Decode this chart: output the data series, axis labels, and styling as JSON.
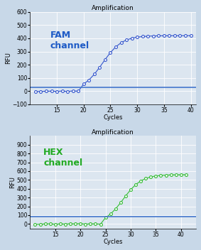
{
  "fam": {
    "title": "Amplification",
    "label": "FAM\nchannel",
    "label_color": "#1e5bc6",
    "line_color": "#3355cc",
    "marker_color": "#3355cc",
    "threshold": 30,
    "threshold_color": "#4477cc",
    "ylim": [
      -100,
      600
    ],
    "yticks": [
      -100,
      0,
      100,
      200,
      300,
      400,
      500,
      600
    ],
    "xlim": [
      10,
      41
    ],
    "xticks": [
      15,
      20,
      25,
      30,
      35,
      40
    ],
    "xlabel": "Cycles",
    "ylabel": "RFU",
    "sigmoid_L": 420,
    "sigmoid_k": 0.55,
    "sigmoid_x0": 23.5,
    "x_start": 11,
    "x_end": 41,
    "baseline_end": 19,
    "baseline_vals": [
      -3,
      -2,
      -1,
      0,
      -2,
      1,
      -3,
      2,
      -1
    ]
  },
  "hex": {
    "title": "Amplification",
    "label": "HEX\nchannel",
    "label_color": "#22aa22",
    "line_color": "#33bb33",
    "marker_color": "#33bb33",
    "threshold": 80,
    "threshold_color": "#4477cc",
    "ylim": [
      -50,
      1000
    ],
    "yticks": [
      0,
      100,
      200,
      300,
      400,
      500,
      600,
      700,
      800,
      900
    ],
    "xlim": [
      10,
      43
    ],
    "xticks": [
      15,
      20,
      25,
      30,
      35,
      40
    ],
    "xlabel": "Cycles",
    "ylabel": "RFU",
    "sigmoid_L": 560,
    "sigmoid_k": 0.55,
    "sigmoid_x0": 28.5,
    "x_start": 11,
    "x_end": 42,
    "baseline_end": 24,
    "baseline_vals": [
      -5,
      -3,
      0,
      2,
      -4,
      1,
      -2,
      3,
      0,
      5,
      -3,
      2,
      0,
      -2
    ]
  },
  "bg_color": "#dce6f0",
  "grid_color": "#ffffff",
  "fig_bg": "#c8d8e8"
}
